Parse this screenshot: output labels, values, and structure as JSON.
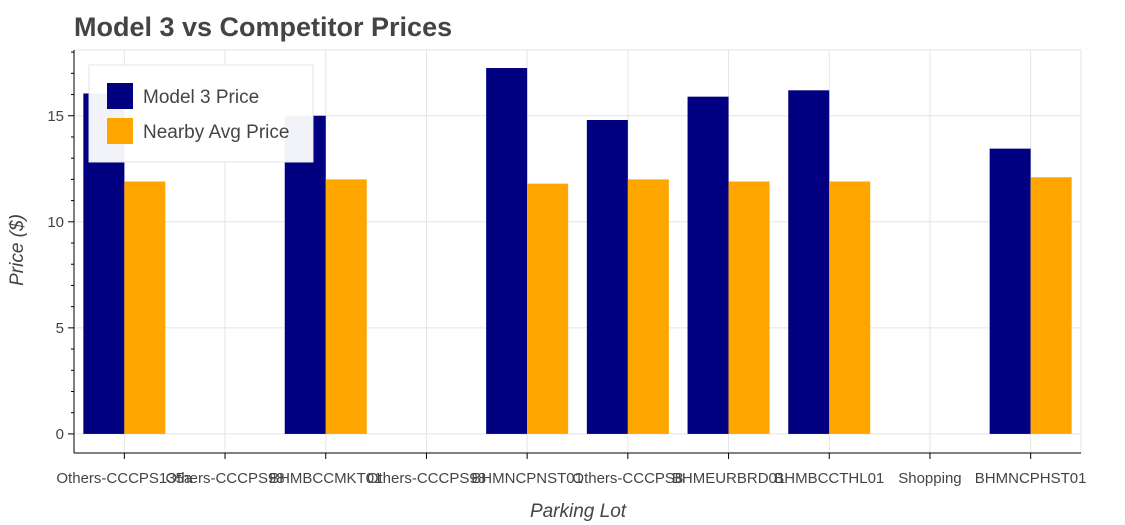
{
  "chart_data": {
    "type": "bar",
    "title": "Model 3 vs Competitor Prices",
    "xlabel": "Parking Lot",
    "ylabel": "Price ($)",
    "categories": [
      "Others-CCCPS135a",
      "Others-CCCPS98",
      "BHMBCCMKT01",
      "Others-CCCPS98",
      "BHMNCPNST01",
      "Others-CCCPS8",
      "BHMEURBRD01",
      "BHMBCCTHL01",
      "Shopping",
      "BHMNCPHST01"
    ],
    "series": [
      {
        "name": "Model 3 Price",
        "color": "#000080",
        "values": [
          16.05,
          null,
          15.0,
          null,
          17.25,
          14.8,
          15.9,
          16.2,
          null,
          13.45
        ]
      },
      {
        "name": "Nearby Avg Price",
        "color": "#FFA500",
        "values": [
          11.9,
          null,
          12.0,
          null,
          11.8,
          12.0,
          11.9,
          11.9,
          null,
          12.1
        ]
      }
    ],
    "ylim": [
      -0.9,
      18.1
    ],
    "yticks": [
      0,
      5,
      10,
      15
    ],
    "grid": true,
    "legend_position": "top-left"
  }
}
